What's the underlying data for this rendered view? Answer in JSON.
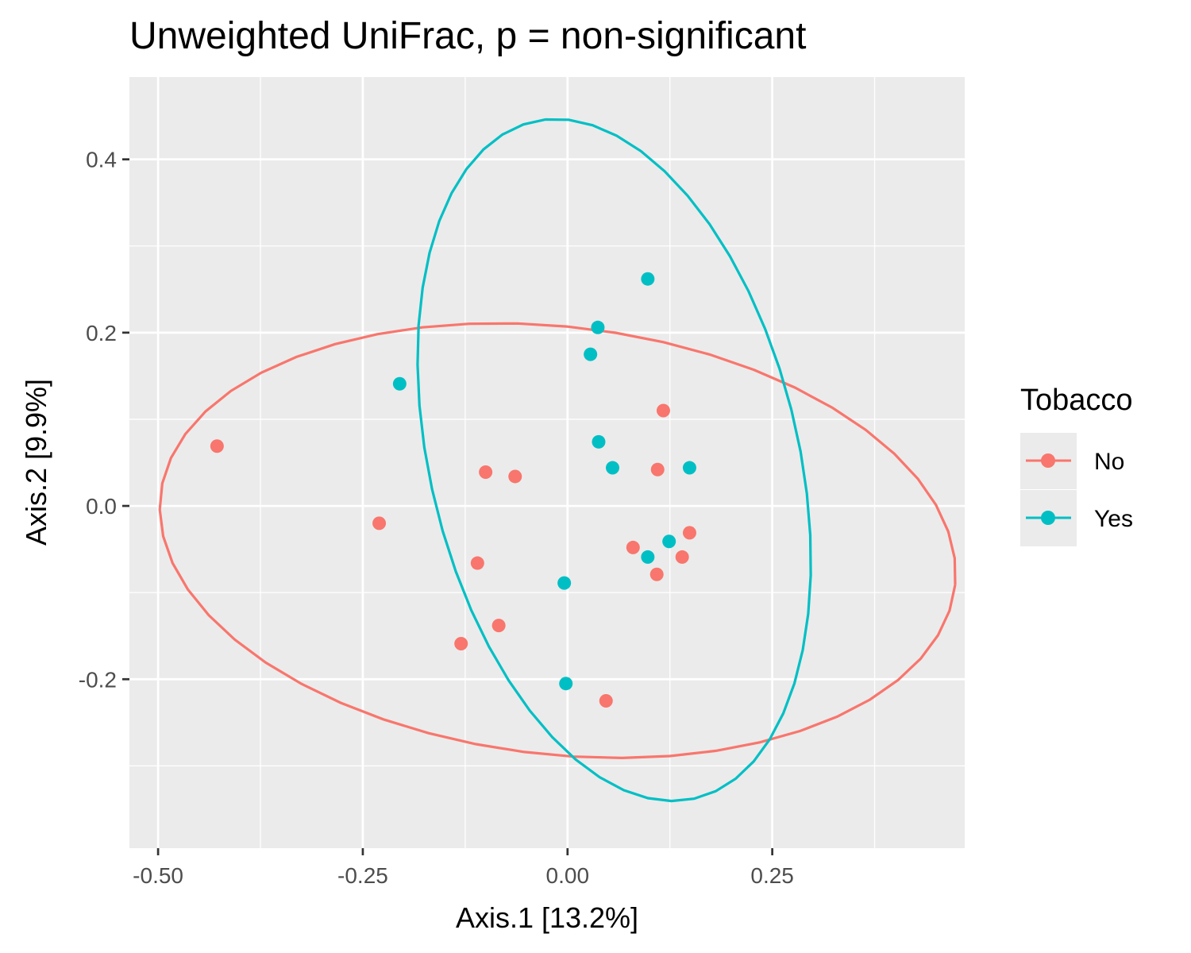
{
  "chart_data": {
    "type": "scatter",
    "title": "Unweighted UniFrac, p = non-significant",
    "xlabel": "Axis.1   [13.2%]",
    "ylabel": "Axis.2   [9.9%]",
    "xlim": [
      -0.535,
      0.485
    ],
    "ylim": [
      -0.395,
      0.495
    ],
    "x_ticks": [
      -0.5,
      -0.25,
      0.0,
      0.25
    ],
    "x_tick_labels": [
      "-0.50",
      "-0.25",
      "0.00",
      "0.25"
    ],
    "y_ticks": [
      -0.2,
      0.0,
      0.2,
      0.4
    ],
    "y_tick_labels": [
      "-0.2",
      "0.0",
      "0.2",
      "0.4"
    ],
    "grid": true,
    "legend": {
      "title": "Tobacco",
      "position": "right",
      "entries": [
        "No",
        "Yes"
      ]
    },
    "series": [
      {
        "name": "No",
        "color": "#F8766D",
        "points": [
          [
            -0.428,
            0.069
          ],
          [
            -0.23,
            -0.02
          ],
          [
            -0.1,
            0.039
          ],
          [
            -0.064,
            0.034
          ],
          [
            -0.11,
            -0.066
          ],
          [
            -0.084,
            -0.138
          ],
          [
            -0.13,
            -0.159
          ],
          [
            0.047,
            -0.225
          ],
          [
            0.08,
            -0.048
          ],
          [
            0.109,
            -0.079
          ],
          [
            0.14,
            -0.059
          ],
          [
            0.149,
            -0.031
          ],
          [
            0.11,
            0.042
          ],
          [
            0.117,
            0.11
          ]
        ],
        "ellipse": {
          "cx": -0.012,
          "cy": -0.04,
          "rx": 0.488,
          "ry": 0.247,
          "angle": -6.0
        }
      },
      {
        "name": "Yes",
        "color": "#00BFC4",
        "points": [
          [
            -0.205,
            0.141
          ],
          [
            0.028,
            0.175
          ],
          [
            0.037,
            0.206
          ],
          [
            0.098,
            0.262
          ],
          [
            0.038,
            0.074
          ],
          [
            0.055,
            0.044
          ],
          [
            0.149,
            0.044
          ],
          [
            0.124,
            -0.041
          ],
          [
            0.098,
            -0.059
          ],
          [
            -0.004,
            -0.089
          ],
          [
            -0.002,
            -0.205
          ]
        ],
        "ellipse": {
          "cx": 0.057,
          "cy": 0.053,
          "rx": 0.224,
          "ry": 0.403,
          "angle": 15.0
        }
      }
    ]
  }
}
